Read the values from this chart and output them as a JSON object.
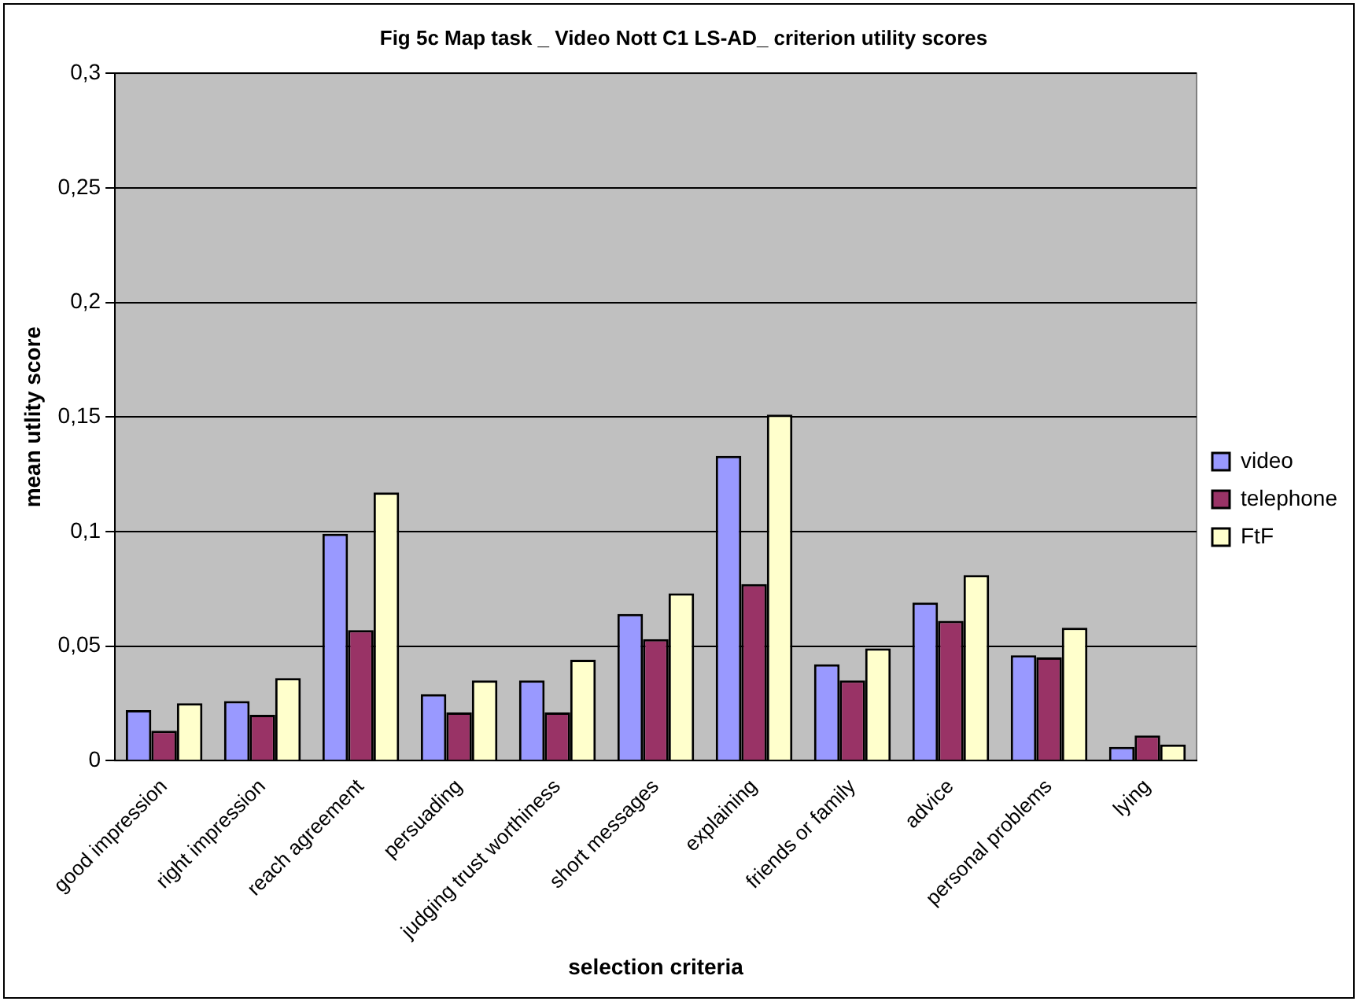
{
  "chart_data": {
    "type": "bar",
    "title": "Fig 5c Map task _ Video Nott C1 LS-AD_ criterion utility scores",
    "xlabel": "selection criteria",
    "ylabel": "mean utlity score",
    "categories": [
      "good impression",
      "right impression",
      "reach agreement",
      "persuading",
      "judging trust worthiness",
      "short messages",
      "explaining",
      "friends or family",
      "advice",
      "personal problems",
      "lying"
    ],
    "series": [
      {
        "name": "video",
        "color": "#9999ff",
        "values": [
          0.022,
          0.026,
          0.099,
          0.029,
          0.035,
          0.064,
          0.133,
          0.042,
          0.069,
          0.046,
          0.006
        ]
      },
      {
        "name": "telephone",
        "color": "#993366",
        "values": [
          0.013,
          0.02,
          0.057,
          0.021,
          0.021,
          0.053,
          0.077,
          0.035,
          0.061,
          0.045,
          0.011
        ]
      },
      {
        "name": "FtF",
        "color": "#ffffcc",
        "values": [
          0.025,
          0.036,
          0.117,
          0.035,
          0.044,
          0.073,
          0.151,
          0.049,
          0.081,
          0.058,
          0.007
        ]
      }
    ],
    "ylim": [
      0,
      0.3
    ],
    "yticks": [
      {
        "value": 0,
        "label": "0"
      },
      {
        "value": 0.05,
        "label": "0,05"
      },
      {
        "value": 0.1,
        "label": "0,1"
      },
      {
        "value": 0.15,
        "label": "0,15"
      },
      {
        "value": 0.2,
        "label": "0,2"
      },
      {
        "value": 0.25,
        "label": "0,25"
      },
      {
        "value": 0.3,
        "label": "0,3"
      }
    ],
    "grid": "y",
    "legend": "right"
  }
}
